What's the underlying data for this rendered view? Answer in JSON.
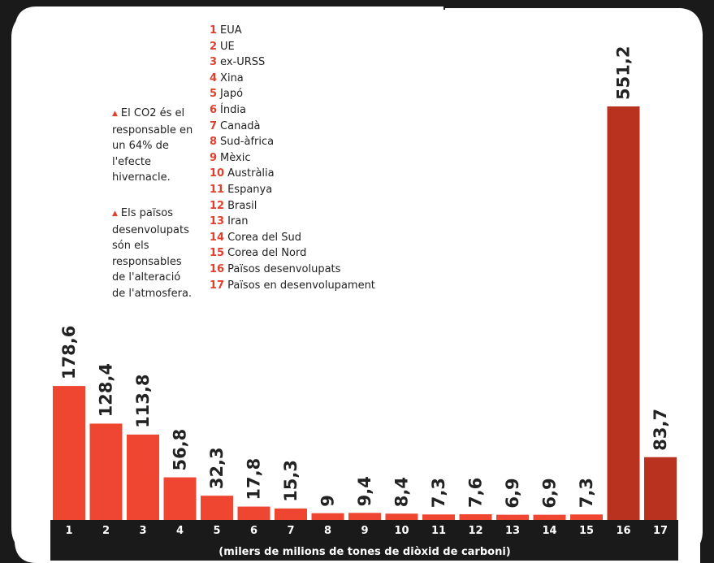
{
  "notes": [
    {
      "icon": "triangle-up-icon",
      "text": "El CO2 és el responsable en un 64% de l'efecte hivernacle."
    },
    {
      "icon": "triangle-up-icon",
      "text": "Els països desenvolupats són els responsables de l'alteració de l'atmosfera."
    }
  ],
  "legend": [
    {
      "num": "1",
      "label": "EUA"
    },
    {
      "num": "2",
      "label": "UE"
    },
    {
      "num": "3",
      "label": "ex-URSS"
    },
    {
      "num": "4",
      "label": "Xina"
    },
    {
      "num": "5",
      "label": "Japó"
    },
    {
      "num": "6",
      "label": "Índia"
    },
    {
      "num": "7",
      "label": "Canadà"
    },
    {
      "num": "8",
      "label": "Sud-àfrica"
    },
    {
      "num": "9",
      "label": "Mèxic"
    },
    {
      "num": "10",
      "label": "Austràlia"
    },
    {
      "num": "11",
      "label": "Espanya"
    },
    {
      "num": "12",
      "label": "Brasil"
    },
    {
      "num": "13",
      "label": "Iran"
    },
    {
      "num": "14",
      "label": "Corea del Sud"
    },
    {
      "num": "15",
      "label": "Corea del Nord"
    },
    {
      "num": "16",
      "label": "Països desenvolupats"
    },
    {
      "num": "17",
      "label": "Països en desenvolupament"
    }
  ],
  "colors": {
    "bar": "#ee4630",
    "bar_dark": "#b8321f",
    "frame": "#1a1a1a",
    "accent": "#e0402e"
  },
  "chart_data": {
    "type": "bar",
    "categories": [
      "1",
      "2",
      "3",
      "4",
      "5",
      "6",
      "7",
      "8",
      "9",
      "10",
      "11",
      "12",
      "13",
      "14",
      "15",
      "16",
      "17"
    ],
    "values": [
      178.6,
      128.4,
      113.8,
      56.8,
      32.3,
      17.8,
      15.3,
      9,
      9.4,
      8.4,
      7.3,
      7.6,
      6.9,
      6.9,
      7.3,
      551.2,
      83.7
    ],
    "value_labels": [
      "178,6",
      "128,4",
      "113,8",
      "56,8",
      "32,3",
      "17,8",
      "15,3",
      "9",
      "9,4",
      "8,4",
      "7,3",
      "7,6",
      "6,9",
      "6,9",
      "7,3",
      "551,2",
      "83,7"
    ],
    "highlight_categories": [
      "16",
      "17"
    ],
    "xlabel": "(milers de milions de tones de diòxid de carboni)",
    "ylabel": "",
    "ylim": [
      0,
      551.2
    ],
    "grid": false
  }
}
